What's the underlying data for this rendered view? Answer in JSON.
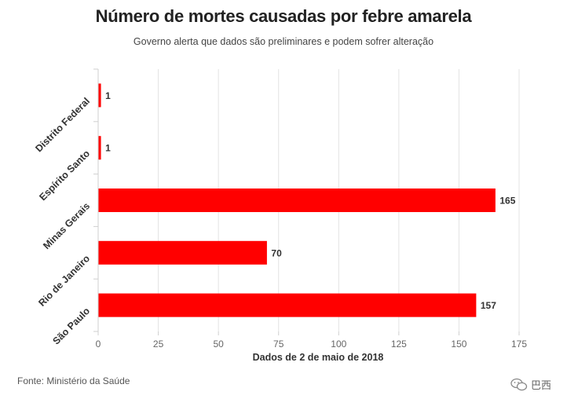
{
  "header": {
    "title": "Número de mortes causadas por febre amarela",
    "subtitle": "Governo alerta que dados são preliminares e podem sofrer alteração"
  },
  "footer": {
    "source": "Fonte: Ministério da Saúde",
    "watermark": "巴西"
  },
  "chart_data": {
    "type": "bar",
    "orientation": "horizontal",
    "title": "Número de mortes causadas por febre amarela",
    "subtitle": "Governo alerta que dados são preliminares e podem sofrer alteração",
    "categories": [
      "Distrito Federal",
      "Espírito Santo",
      "Minas Gerais",
      "Rio de Janeiro",
      "São Paulo"
    ],
    "values": [
      1,
      1,
      165,
      70,
      157
    ],
    "xlabel": "Dados de 2 de maio de 2018",
    "ylabel": "",
    "xlim": [
      0,
      175
    ],
    "xticks": [
      0,
      25,
      50,
      75,
      100,
      125,
      150,
      175
    ],
    "bar_color": "#ff0000",
    "grid": true,
    "data_labels": true
  }
}
